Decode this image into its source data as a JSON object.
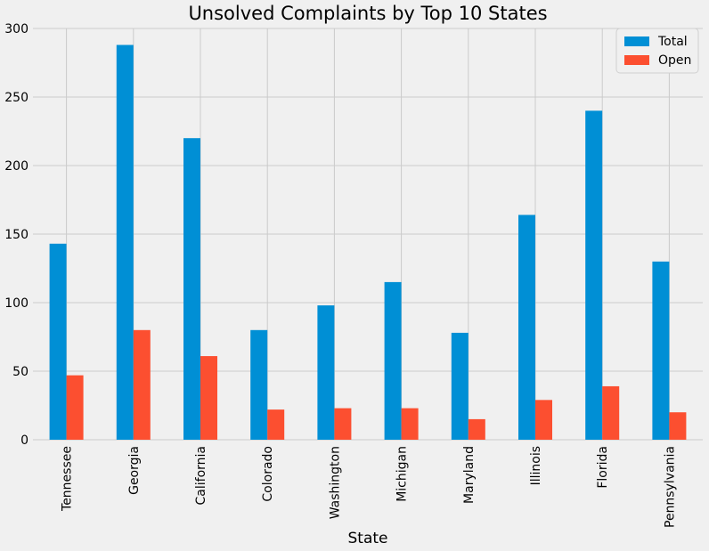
{
  "chart_data": {
    "type": "bar",
    "title": "Unsolved Complaints by Top 10 States",
    "xlabel": "State",
    "ylabel": "",
    "categories": [
      "Tennessee",
      "Georgia",
      "California",
      "Colorado",
      "Washington",
      "Michigan",
      "Maryland",
      "Illinois",
      "Florida",
      "Pennsylvania"
    ],
    "series": [
      {
        "name": "Total",
        "color": "#008fd5",
        "values": [
          143,
          288,
          220,
          80,
          98,
          115,
          78,
          164,
          240,
          130
        ]
      },
      {
        "name": "Open",
        "color": "#fc4f30",
        "values": [
          47,
          80,
          61,
          22,
          23,
          23,
          15,
          29,
          39,
          20
        ]
      }
    ],
    "ylim": [
      0,
      300
    ],
    "yticks": [
      0,
      50,
      100,
      150,
      200,
      250,
      300
    ],
    "grid": true,
    "legend_position": "top-right"
  }
}
